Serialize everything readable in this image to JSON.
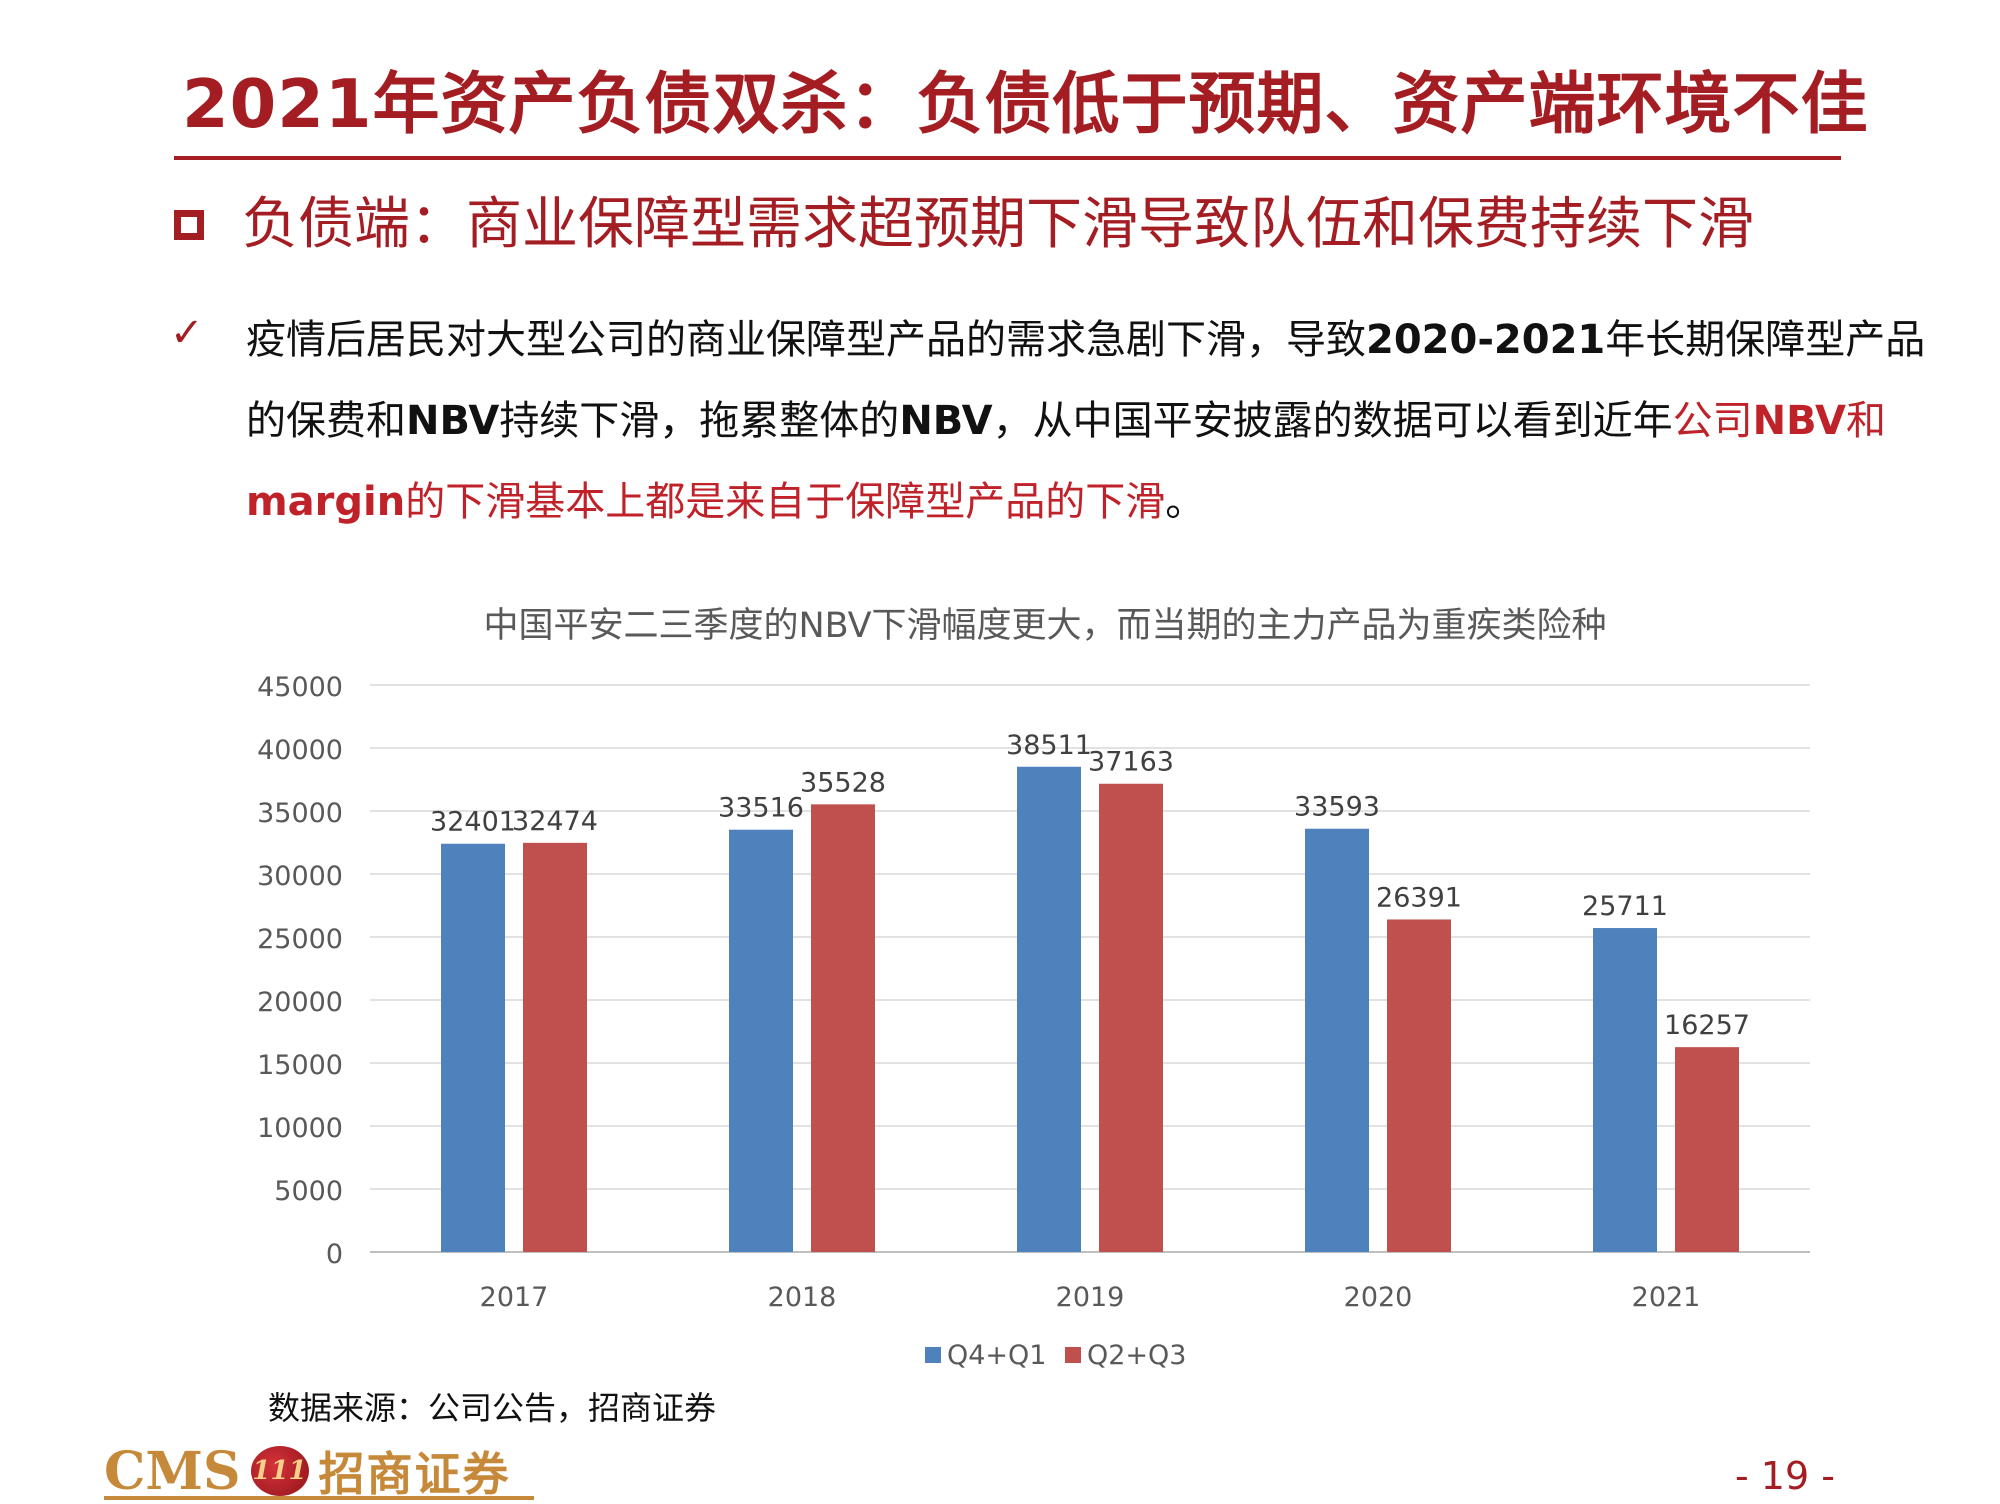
{
  "header": {
    "title": "2021年资产负债双杀：负债低于预期、资产端环境不佳",
    "section_heading": "负债端：商业保障型需求超预期下滑导致队伍和保费持续下滑"
  },
  "body": {
    "check_glyph": "✓",
    "seg1": "疫情后居民对大型公司的商业保障型产品的需求急剧下滑，导致",
    "seg2": "2020-2021",
    "seg3": "年长期保障型产品的保费和",
    "seg4": "NBV",
    "seg5": "持续下滑，拖累整体的",
    "seg6": "NBV",
    "seg7": "，从中国平安披露的数据可以看到近年",
    "seg8": "公司",
    "seg9": "NBV",
    "seg10": "和",
    "seg11": "margin",
    "seg12": "的下滑基本上都是来自于保障型产品的下滑",
    "seg13": "。"
  },
  "chart_data": {
    "type": "bar",
    "title": "中国平安二三季度的NBV下滑幅度更大，而当期的主力产品为重疾类险种",
    "categories": [
      "2017",
      "2018",
      "2019",
      "2020",
      "2021"
    ],
    "series": [
      {
        "name": "Q4+Q1",
        "values": [
          32401,
          33516,
          38511,
          33593,
          25711
        ],
        "color": "#4f81bd"
      },
      {
        "name": "Q2+Q3",
        "values": [
          32474,
          35528,
          37163,
          26391,
          16257
        ],
        "color": "#c0504d"
      }
    ],
    "ylim": [
      0,
      45000
    ],
    "yticks": [
      0,
      5000,
      10000,
      15000,
      20000,
      25000,
      30000,
      35000,
      40000,
      45000
    ],
    "grid": true,
    "legend": "bottom",
    "xlabel": "",
    "ylabel": ""
  },
  "source": "数据来源：公司公告，招商证券",
  "footer": {
    "logo_cms": "CMS",
    "logo_emblem": "111",
    "logo_cn": "招商证券",
    "page": "- 19 -"
  }
}
